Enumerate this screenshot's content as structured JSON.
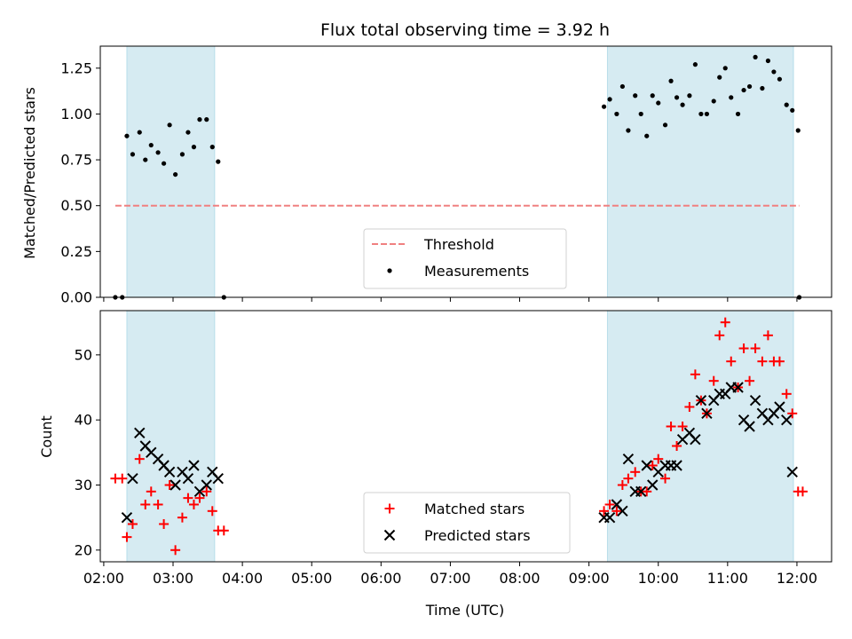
{
  "chart_data": {
    "type": "scatter",
    "title": "Flux total observing time = 3.92 h",
    "xlabel": "Time (UTC)",
    "x_ticks": [
      "02:00",
      "03:00",
      "04:00",
      "05:00",
      "06:00",
      "07:00",
      "08:00",
      "09:00",
      "10:00",
      "11:00",
      "12:00"
    ],
    "xlim": [
      "01:57",
      "12:30"
    ],
    "observing_windows": [
      [
        "02:20",
        "03:36"
      ],
      [
        "09:16",
        "11:57"
      ]
    ],
    "top": {
      "ylabel": "Matched/Predicted stars",
      "ylim": [
        0,
        1.37
      ],
      "y_ticks": [
        "0.00",
        "0.25",
        "0.50",
        "0.75",
        "1.00",
        "1.25"
      ],
      "threshold": {
        "name": "Threshold",
        "value": 0.5,
        "x_range": [
          "02:10",
          "12:02"
        ],
        "color": "#f08080"
      },
      "measurements": {
        "name": "Measurements",
        "color": "#000000",
        "points": [
          [
            "02:10",
            0.0
          ],
          [
            "02:16",
            0.0
          ],
          [
            "02:20",
            0.88
          ],
          [
            "02:25",
            0.78
          ],
          [
            "02:31",
            0.9
          ],
          [
            "02:36",
            0.75
          ],
          [
            "02:41",
            0.83
          ],
          [
            "02:47",
            0.79
          ],
          [
            "02:52",
            0.73
          ],
          [
            "02:57",
            0.94
          ],
          [
            "03:02",
            0.67
          ],
          [
            "03:08",
            0.78
          ],
          [
            "03:13",
            0.9
          ],
          [
            "03:18",
            0.82
          ],
          [
            "03:23",
            0.97
          ],
          [
            "03:29",
            0.97
          ],
          [
            "03:34",
            0.82
          ],
          [
            "03:39",
            0.74
          ],
          [
            "03:44",
            0.0
          ],
          [
            "09:13",
            1.04
          ],
          [
            "09:18",
            1.08
          ],
          [
            "09:24",
            1.0
          ],
          [
            "09:29",
            1.15
          ],
          [
            "09:34",
            0.91
          ],
          [
            "09:40",
            1.1
          ],
          [
            "09:45",
            1.0
          ],
          [
            "09:50",
            0.88
          ],
          [
            "09:55",
            1.1
          ],
          [
            "10:00",
            1.06
          ],
          [
            "10:06",
            0.94
          ],
          [
            "10:11",
            1.18
          ],
          [
            "10:16",
            1.09
          ],
          [
            "10:21",
            1.05
          ],
          [
            "10:27",
            1.1
          ],
          [
            "10:32",
            1.27
          ],
          [
            "10:37",
            1.0
          ],
          [
            "10:42",
            1.0
          ],
          [
            "10:48",
            1.07
          ],
          [
            "10:53",
            1.2
          ],
          [
            "10:58",
            1.25
          ],
          [
            "11:03",
            1.09
          ],
          [
            "11:09",
            1.0
          ],
          [
            "11:14",
            1.13
          ],
          [
            "11:19",
            1.15
          ],
          [
            "11:24",
            1.31
          ],
          [
            "11:30",
            1.14
          ],
          [
            "11:35",
            1.29
          ],
          [
            "11:40",
            1.23
          ],
          [
            "11:45",
            1.19
          ],
          [
            "11:51",
            1.05
          ],
          [
            "11:56",
            1.02
          ],
          [
            "12:01",
            0.91
          ],
          [
            "12:02",
            0.0
          ]
        ]
      },
      "legend": {
        "placement": "lower-center"
      }
    },
    "bottom": {
      "ylabel": "Count",
      "ylim": [
        18.2,
        56.8
      ],
      "y_ticks": [
        "20",
        "30",
        "40",
        "50"
      ],
      "series": [
        {
          "name": "Matched stars",
          "marker": "+",
          "color": "#ff0000",
          "points": [
            [
              "02:10",
              31
            ],
            [
              "02:16",
              31
            ],
            [
              "02:20",
              22
            ],
            [
              "02:25",
              24
            ],
            [
              "02:31",
              34
            ],
            [
              "02:36",
              27
            ],
            [
              "02:41",
              29
            ],
            [
              "02:47",
              27
            ],
            [
              "02:52",
              24
            ],
            [
              "02:57",
              30
            ],
            [
              "03:02",
              20
            ],
            [
              "03:08",
              25
            ],
            [
              "03:13",
              28
            ],
            [
              "03:18",
              27
            ],
            [
              "03:23",
              28
            ],
            [
              "03:29",
              29
            ],
            [
              "03:34",
              26
            ],
            [
              "03:39",
              23
            ],
            [
              "03:44",
              23
            ],
            [
              "09:13",
              26
            ],
            [
              "09:18",
              27
            ],
            [
              "09:24",
              26
            ],
            [
              "09:29",
              30
            ],
            [
              "09:34",
              31
            ],
            [
              "09:40",
              32
            ],
            [
              "09:45",
              29
            ],
            [
              "09:50",
              29
            ],
            [
              "09:55",
              33
            ],
            [
              "10:00",
              34
            ],
            [
              "10:06",
              31
            ],
            [
              "10:11",
              39
            ],
            [
              "10:16",
              36
            ],
            [
              "10:21",
              39
            ],
            [
              "10:27",
              42
            ],
            [
              "10:32",
              47
            ],
            [
              "10:37",
              43
            ],
            [
              "10:42",
              41
            ],
            [
              "10:48",
              46
            ],
            [
              "10:53",
              53
            ],
            [
              "10:58",
              55
            ],
            [
              "11:03",
              49
            ],
            [
              "11:09",
              45
            ],
            [
              "11:14",
              51
            ],
            [
              "11:19",
              46
            ],
            [
              "11:24",
              51
            ],
            [
              "11:30",
              49
            ],
            [
              "11:35",
              53
            ],
            [
              "11:40",
              49
            ],
            [
              "11:45",
              49
            ],
            [
              "11:51",
              44
            ],
            [
              "11:56",
              41
            ],
            [
              "12:01",
              29
            ],
            [
              "12:05",
              29
            ]
          ]
        },
        {
          "name": "Predicted stars",
          "marker": "x",
          "color": "#000000",
          "points": [
            [
              "02:20",
              25
            ],
            [
              "02:25",
              31
            ],
            [
              "02:31",
              38
            ],
            [
              "02:36",
              36
            ],
            [
              "02:41",
              35
            ],
            [
              "02:47",
              34
            ],
            [
              "02:52",
              33
            ],
            [
              "02:57",
              32
            ],
            [
              "03:02",
              30
            ],
            [
              "03:08",
              32
            ],
            [
              "03:13",
              31
            ],
            [
              "03:18",
              33
            ],
            [
              "03:23",
              29
            ],
            [
              "03:29",
              30
            ],
            [
              "03:34",
              32
            ],
            [
              "03:39",
              31
            ],
            [
              "09:13",
              25
            ],
            [
              "09:18",
              25
            ],
            [
              "09:24",
              27
            ],
            [
              "09:29",
              26
            ],
            [
              "09:34",
              34
            ],
            [
              "09:40",
              29
            ],
            [
              "09:45",
              29
            ],
            [
              "09:50",
              33
            ],
            [
              "09:55",
              30
            ],
            [
              "10:00",
              32
            ],
            [
              "10:06",
              33
            ],
            [
              "10:11",
              33
            ],
            [
              "10:16",
              33
            ],
            [
              "10:21",
              37
            ],
            [
              "10:27",
              38
            ],
            [
              "10:32",
              37
            ],
            [
              "10:37",
              43
            ],
            [
              "10:42",
              41
            ],
            [
              "10:48",
              43
            ],
            [
              "10:53",
              44
            ],
            [
              "10:58",
              44
            ],
            [
              "11:03",
              45
            ],
            [
              "11:09",
              45
            ],
            [
              "11:14",
              40
            ],
            [
              "11:19",
              39
            ],
            [
              "11:24",
              43
            ],
            [
              "11:30",
              41
            ],
            [
              "11:35",
              40
            ],
            [
              "11:40",
              41
            ],
            [
              "11:45",
              42
            ],
            [
              "11:51",
              40
            ],
            [
              "11:56",
              32
            ]
          ]
        }
      ],
      "legend": {
        "placement": "lower-center"
      }
    }
  }
}
